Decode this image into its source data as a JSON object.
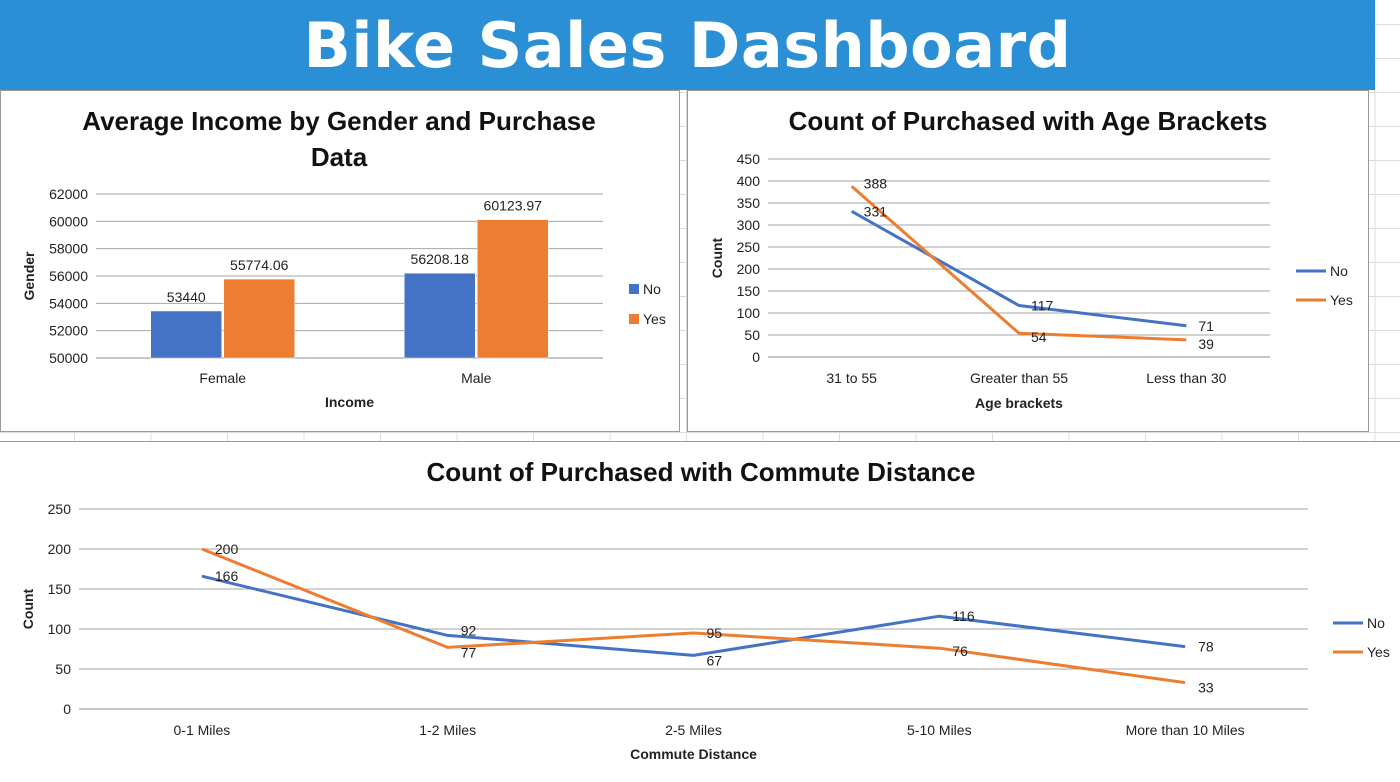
{
  "dashboard": {
    "title": "Bike Sales Dashboard"
  },
  "colors": {
    "banner": "#2b8fd6",
    "no": "#4472c4",
    "yes": "#ed7d31"
  },
  "chart_data": [
    {
      "id": "income",
      "type": "bar",
      "title_lines": [
        "Average Income by Gender and Purchase",
        "Data"
      ],
      "xlabel": "Income",
      "ylabel": "Gender",
      "categories": [
        "Female",
        "Male"
      ],
      "ylim": [
        50000,
        62000
      ],
      "yticks": [
        "50000",
        "52000",
        "54000",
        "56000",
        "58000",
        "60000",
        "62000"
      ],
      "series": [
        {
          "name": "No",
          "values": [
            53440,
            56208.18
          ],
          "labels": [
            "53440",
            "56208.18"
          ]
        },
        {
          "name": "Yes",
          "values": [
            55774.06,
            60123.97
          ],
          "labels": [
            "55774.06",
            "60123.97"
          ]
        }
      ],
      "grid": true,
      "legend": "right"
    },
    {
      "id": "age",
      "type": "line",
      "title_lines": [
        "Count of Purchased with Age Brackets"
      ],
      "xlabel": "Age brackets",
      "ylabel": "Count",
      "categories": [
        "31 to 55",
        "Greater than 55",
        "Less than 30"
      ],
      "ylim": [
        0,
        450
      ],
      "yticks": [
        "0",
        "50",
        "100",
        "150",
        "200",
        "250",
        "300",
        "350",
        "400",
        "450"
      ],
      "series": [
        {
          "name": "No",
          "values": [
            331,
            117,
            71
          ],
          "labels": [
            "331",
            "117",
            "71"
          ]
        },
        {
          "name": "Yes",
          "values": [
            388,
            54,
            39
          ],
          "labels": [
            "388",
            "54",
            "39"
          ]
        }
      ],
      "grid": true,
      "legend": "right"
    },
    {
      "id": "commute",
      "type": "line",
      "title_lines": [
        "Count of Purchased with Commute Distance"
      ],
      "xlabel": "Commute Distance",
      "ylabel": "Count",
      "categories": [
        "0-1 Miles",
        "1-2 Miles",
        "2-5 Miles",
        "5-10 Miles",
        "More than 10 Miles"
      ],
      "ylim": [
        0,
        250
      ],
      "yticks": [
        "0",
        "50",
        "100",
        "150",
        "200",
        "250"
      ],
      "series": [
        {
          "name": "No",
          "values": [
            166,
            92,
            67,
            116,
            78
          ],
          "labels": [
            "166",
            "92",
            "67",
            "116",
            "78"
          ]
        },
        {
          "name": "Yes",
          "values": [
            200,
            77,
            95,
            76,
            33
          ],
          "labels": [
            "200",
            "77",
            "95",
            "76",
            "33"
          ]
        }
      ],
      "grid": true,
      "legend": "right"
    }
  ]
}
